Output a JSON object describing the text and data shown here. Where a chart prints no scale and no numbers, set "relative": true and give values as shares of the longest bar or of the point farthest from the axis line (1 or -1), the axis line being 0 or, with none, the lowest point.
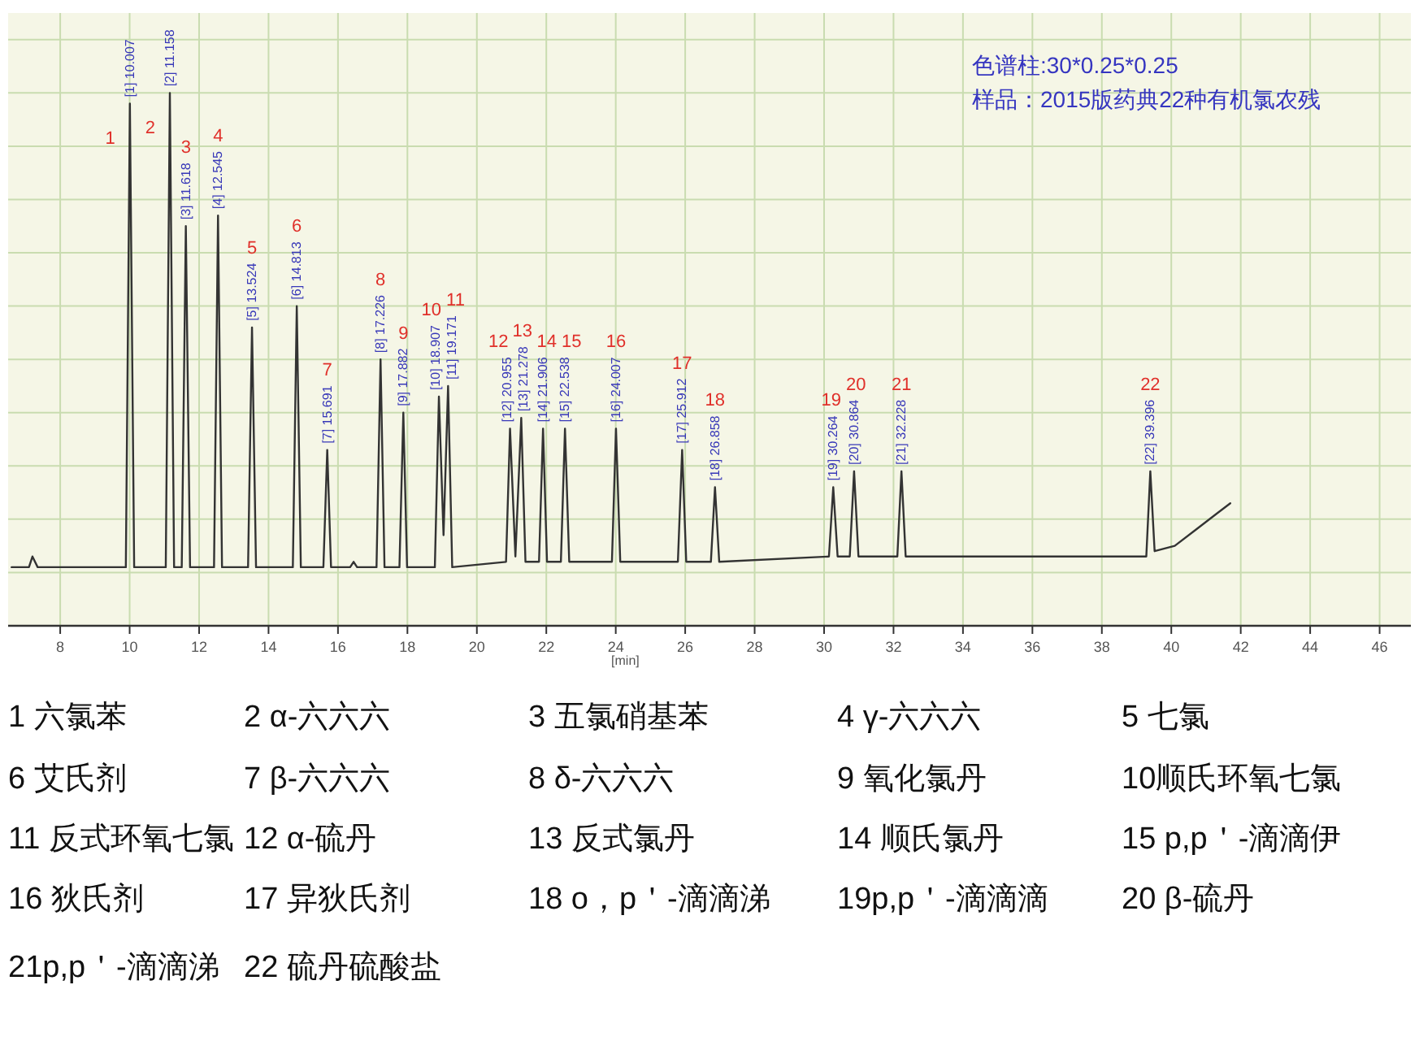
{
  "chart_data": {
    "type": "line",
    "title": "色谱柱:30*0.25*0.25",
    "subtitle": "样品：2015版药典22种有机氯农残",
    "xlabel": "[min]",
    "relative": true,
    "xlim": [
      6.5,
      46.9
    ],
    "xticks": [
      8,
      10,
      12,
      14,
      16,
      18,
      20,
      22,
      24,
      26,
      28,
      30,
      32,
      34,
      36,
      38,
      40,
      42,
      44,
      46
    ],
    "grid": true,
    "series": [
      {
        "color": "#333333",
        "x": [
          6.6,
          7.1,
          7.2,
          7.35,
          9.89,
          10.007,
          10.13,
          11.04,
          11.158,
          11.28,
          11.5,
          11.618,
          11.74,
          12.43,
          12.545,
          12.66,
          13.41,
          13.524,
          13.64,
          14.7,
          14.813,
          14.93,
          15.58,
          15.691,
          15.8,
          16.35,
          16.45,
          16.55,
          17.11,
          17.226,
          17.34,
          17.77,
          17.882,
          17.99,
          18.79,
          18.907,
          19.04,
          19.171,
          19.29,
          20.84,
          20.955,
          21.11,
          21.278,
          21.4,
          21.79,
          21.906,
          22.02,
          22.42,
          22.538,
          22.66,
          23.89,
          24.007,
          24.13,
          25.79,
          25.912,
          26.03,
          26.74,
          26.858,
          26.98,
          30.14,
          30.264,
          30.39,
          30.74,
          30.864,
          30.99,
          32.11,
          32.228,
          32.35,
          39.28,
          39.396,
          39.52,
          40.1,
          40.7,
          41.3,
          41.7
        ],
        "values": [
          0.11,
          0.11,
          0.13,
          0.11,
          0.11,
          0.98,
          0.11,
          0.11,
          1.0,
          0.11,
          0.11,
          0.75,
          0.11,
          0.11,
          0.77,
          0.11,
          0.11,
          0.56,
          0.11,
          0.11,
          0.6,
          0.11,
          0.11,
          0.33,
          0.11,
          0.11,
          0.12,
          0.11,
          0.11,
          0.5,
          0.11,
          0.11,
          0.4,
          0.11,
          0.11,
          0.43,
          0.17,
          0.45,
          0.11,
          0.12,
          0.37,
          0.13,
          0.39,
          0.12,
          0.12,
          0.37,
          0.12,
          0.12,
          0.37,
          0.12,
          0.12,
          0.37,
          0.12,
          0.12,
          0.33,
          0.12,
          0.12,
          0.26,
          0.12,
          0.13,
          0.26,
          0.13,
          0.13,
          0.29,
          0.13,
          0.13,
          0.29,
          0.13,
          0.13,
          0.29,
          0.14,
          0.15,
          0.18,
          0.21,
          0.23
        ]
      }
    ],
    "annotations": [
      {
        "text": "[1] 10.007",
        "x": 10.007,
        "y": 0.98
      },
      {
        "text": "[2] 11.158",
        "x": 11.158,
        "y": 1.0
      },
      {
        "text": "[3] 11.618",
        "x": 11.618,
        "y": 0.75
      },
      {
        "text": "[4] 12.545",
        "x": 12.545,
        "y": 0.77
      },
      {
        "text": "[5] 13.524",
        "x": 13.524,
        "y": 0.56
      },
      {
        "text": "[6] 14.813",
        "x": 14.813,
        "y": 0.6
      },
      {
        "text": "[7] 15.691",
        "x": 15.691,
        "y": 0.33
      },
      {
        "text": "[8] 17.226",
        "x": 17.226,
        "y": 0.5
      },
      {
        "text": "[9] 17.882",
        "x": 17.882,
        "y": 0.4
      },
      {
        "text": "[10] 18.907",
        "x": 18.907,
        "y": 0.43
      },
      {
        "text": "[11] 19.171",
        "x": 19.171,
        "y": 0.45
      },
      {
        "text": "[12] 20.955",
        "x": 20.955,
        "y": 0.37
      },
      {
        "text": "[13] 21.278",
        "x": 21.278,
        "y": 0.39
      },
      {
        "text": "[14] 21.906",
        "x": 21.906,
        "y": 0.37
      },
      {
        "text": "[15] 22.538",
        "x": 22.538,
        "y": 0.37
      },
      {
        "text": "[16] 24.007",
        "x": 24.007,
        "y": 0.37
      },
      {
        "text": "[17] 25.912",
        "x": 25.912,
        "y": 0.33
      },
      {
        "text": "[18] 26.858",
        "x": 26.858,
        "y": 0.26
      },
      {
        "text": "[19] 30.264",
        "x": 30.264,
        "y": 0.26
      },
      {
        "text": "[20] 30.864",
        "x": 30.864,
        "y": 0.29
      },
      {
        "text": "[21] 32.228",
        "x": 32.228,
        "y": 0.29
      },
      {
        "text": "[22] 39.396",
        "x": 39.396,
        "y": 0.29
      },
      "1",
      "2",
      "3",
      "4",
      "5",
      "6",
      "7",
      "8",
      "9",
      "10",
      "11",
      "12",
      "13",
      "14",
      "15",
      "16",
      "17",
      "18",
      "19",
      "20",
      "21",
      "22",
      "1 六氯苯",
      "2 α-六六六",
      "3 五氯硝基苯",
      "4 γ-六六六",
      "5 七氯",
      "6 艾氏剂",
      "7 β-六六六",
      "8 δ-六六六",
      "9 氧化氯丹",
      "10顺氏环氧七氯",
      "11 反式环氧七氯",
      "12 α-硫丹",
      "13 反式氯丹",
      "14 顺氏氯丹",
      "15 p,p＇-滴滴伊",
      "16 狄氏剂",
      "17 异狄氏剂",
      "18 o，p＇-滴滴涕",
      "19p,p＇-滴滴滴",
      "20 β-硫丹",
      "21p,p＇-滴滴涕",
      "22 硫丹硫酸盐"
    ]
  }
}
